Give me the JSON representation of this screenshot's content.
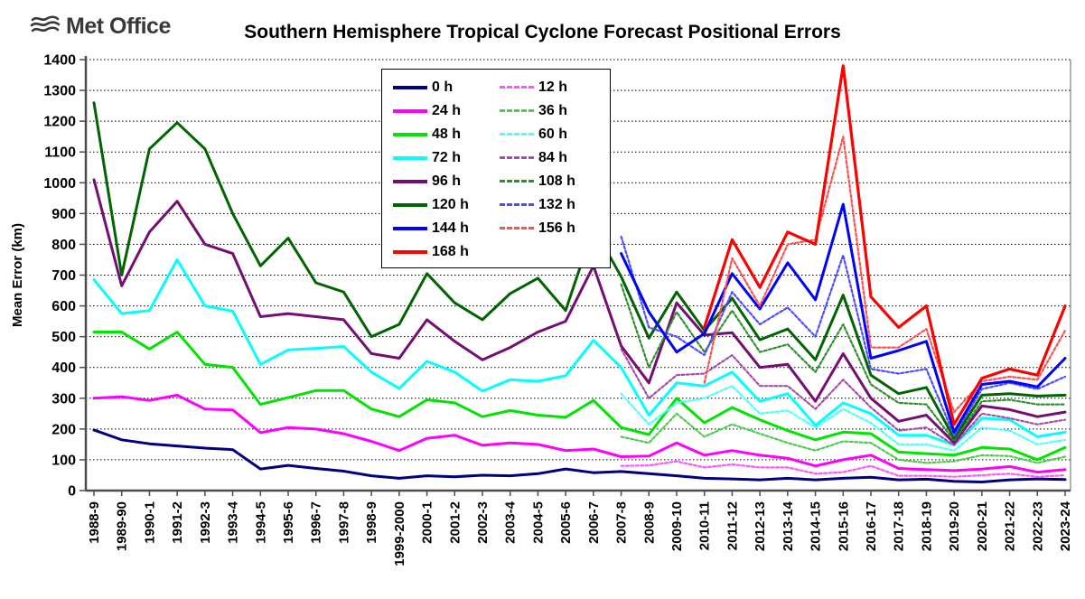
{
  "logo": {
    "text": "Met Office"
  },
  "chart_data": {
    "type": "line",
    "title": "Southern Hemisphere Tropical Cyclone Forecast Positional Errors",
    "xlabel": "",
    "ylabel": "Mean Error (km)",
    "ylim": [
      0,
      1400
    ],
    "ytick_step": 100,
    "grid": true,
    "legend_position": "inside-top-left",
    "categories": [
      "1988-9",
      "1989-90",
      "1990-1",
      "1991-2",
      "1992-3",
      "1993-4",
      "1994-5",
      "1995-6",
      "1996-7",
      "1997-8",
      "1998-9",
      "1999-2000",
      "2000-1",
      "2001-2",
      "2002-3",
      "2003-4",
      "2004-5",
      "2005-6",
      "2006-7",
      "2007-8",
      "2008-9",
      "2009-10",
      "2010-11",
      "2011-12",
      "2012-13",
      "2013-14",
      "2014-15",
      "2015-16",
      "2016-17",
      "2017-18",
      "2018-19",
      "2019-20",
      "2020-21",
      "2021-22",
      "2022-23",
      "2023-24"
    ],
    "series": [
      {
        "name": "0 h",
        "color": "#000080",
        "dashed": false,
        "width": 3,
        "values": [
          197,
          165,
          152,
          145,
          138,
          133,
          70,
          82,
          72,
          63,
          48,
          40,
          48,
          45,
          50,
          48,
          55,
          70,
          58,
          62,
          55,
          48,
          40,
          38,
          35,
          40,
          35,
          40,
          43,
          35,
          37,
          30,
          28,
          35,
          38,
          36
        ]
      },
      {
        "name": "12 h",
        "color": "#ff54ff",
        "dashed": true,
        "width": 2.2,
        "values": [
          null,
          null,
          null,
          null,
          null,
          null,
          null,
          null,
          null,
          null,
          null,
          null,
          null,
          null,
          null,
          null,
          null,
          null,
          null,
          80,
          82,
          95,
          75,
          85,
          75,
          75,
          55,
          60,
          80,
          48,
          48,
          45,
          50,
          55,
          45,
          50
        ]
      },
      {
        "name": "24 h",
        "color": "#ff00ff",
        "dashed": false,
        "width": 3,
        "values": [
          300,
          305,
          293,
          310,
          265,
          262,
          188,
          205,
          200,
          185,
          160,
          130,
          170,
          180,
          147,
          155,
          150,
          130,
          135,
          110,
          112,
          155,
          115,
          130,
          115,
          105,
          80,
          100,
          115,
          72,
          68,
          65,
          70,
          78,
          60,
          68
        ]
      },
      {
        "name": "36 h",
        "color": "#4ecb4e",
        "dashed": true,
        "width": 2.2,
        "values": [
          null,
          null,
          null,
          null,
          null,
          null,
          null,
          null,
          null,
          null,
          null,
          null,
          null,
          null,
          null,
          null,
          null,
          null,
          null,
          175,
          155,
          250,
          175,
          215,
          185,
          155,
          130,
          160,
          155,
          100,
          90,
          95,
          115,
          112,
          90,
          110
        ]
      },
      {
        "name": "48 h",
        "color": "#00e400",
        "dashed": false,
        "width": 3,
        "values": [
          515,
          515,
          460,
          515,
          410,
          400,
          280,
          302,
          325,
          325,
          265,
          240,
          295,
          285,
          240,
          260,
          245,
          238,
          293,
          205,
          182,
          300,
          220,
          270,
          230,
          195,
          165,
          190,
          185,
          125,
          120,
          115,
          140,
          135,
          100,
          140
        ]
      },
      {
        "name": "60 h",
        "color": "#4dffff",
        "dashed": true,
        "width": 2.2,
        "values": [
          null,
          null,
          null,
          null,
          null,
          null,
          null,
          null,
          null,
          null,
          null,
          null,
          null,
          null,
          null,
          null,
          null,
          null,
          null,
          315,
          215,
          285,
          300,
          340,
          250,
          260,
          205,
          265,
          220,
          150,
          150,
          130,
          205,
          195,
          150,
          165
        ]
      },
      {
        "name": "72 h",
        "color": "#00ffff",
        "dashed": false,
        "width": 3,
        "values": [
          685,
          575,
          585,
          750,
          600,
          583,
          410,
          457,
          462,
          468,
          385,
          332,
          420,
          385,
          323,
          360,
          355,
          373,
          488,
          400,
          245,
          350,
          340,
          385,
          290,
          315,
          212,
          285,
          250,
          180,
          180,
          148,
          235,
          230,
          175,
          190
        ]
      },
      {
        "name": "84 h",
        "color": "#a94ca9",
        "dashed": true,
        "width": 2.2,
        "values": [
          null,
          null,
          null,
          null,
          null,
          null,
          null,
          null,
          null,
          null,
          null,
          null,
          null,
          null,
          null,
          null,
          null,
          null,
          null,
          460,
          300,
          375,
          380,
          440,
          340,
          340,
          265,
          360,
          270,
          195,
          205,
          148,
          250,
          235,
          215,
          230
        ]
      },
      {
        "name": "96 h",
        "color": "#730e73",
        "dashed": false,
        "width": 3,
        "values": [
          1010,
          665,
          840,
          940,
          800,
          770,
          565,
          575,
          565,
          555,
          445,
          430,
          555,
          485,
          425,
          465,
          515,
          550,
          730,
          470,
          350,
          610,
          505,
          513,
          400,
          410,
          290,
          445,
          300,
          225,
          245,
          155,
          275,
          263,
          240,
          255
        ]
      },
      {
        "name": "108 h",
        "color": "#2f8f2f",
        "dashed": true,
        "width": 2.2,
        "values": [
          null,
          null,
          null,
          null,
          null,
          null,
          null,
          null,
          null,
          null,
          null,
          null,
          null,
          null,
          null,
          null,
          null,
          null,
          null,
          670,
          400,
          580,
          450,
          585,
          450,
          475,
          385,
          540,
          345,
          285,
          280,
          162,
          290,
          295,
          280,
          280
        ]
      },
      {
        "name": "120 h",
        "color": "#006400",
        "dashed": false,
        "width": 3,
        "values": [
          1260,
          700,
          1110,
          1195,
          1110,
          900,
          730,
          820,
          675,
          645,
          500,
          540,
          705,
          610,
          555,
          640,
          690,
          585,
          855,
          695,
          495,
          645,
          520,
          625,
          490,
          525,
          425,
          635,
          375,
          315,
          335,
          170,
          310,
          315,
          307,
          310
        ]
      },
      {
        "name": "132 h",
        "color": "#4d4dff",
        "dashed": true,
        "width": 2.2,
        "values": [
          null,
          null,
          null,
          null,
          null,
          null,
          null,
          null,
          null,
          null,
          null,
          null,
          null,
          null,
          null,
          null,
          null,
          null,
          null,
          825,
          530,
          500,
          440,
          645,
          540,
          595,
          500,
          765,
          395,
          380,
          395,
          178,
          330,
          350,
          330,
          370
        ]
      },
      {
        "name": "144 h",
        "color": "#0000ff",
        "dashed": false,
        "width": 3,
        "values": [
          null,
          null,
          null,
          null,
          null,
          null,
          null,
          null,
          null,
          null,
          null,
          null,
          null,
          null,
          null,
          null,
          null,
          null,
          null,
          770,
          580,
          450,
          510,
          705,
          590,
          740,
          620,
          930,
          430,
          455,
          485,
          190,
          345,
          355,
          337,
          430
        ]
      },
      {
        "name": "156 h",
        "color": "#ff5050",
        "dashed": true,
        "width": 2.2,
        "values": [
          null,
          null,
          null,
          null,
          null,
          null,
          null,
          null,
          null,
          null,
          null,
          null,
          null,
          null,
          null,
          null,
          null,
          null,
          null,
          null,
          null,
          null,
          350,
          755,
          600,
          800,
          815,
          1150,
          465,
          465,
          525,
          255,
          355,
          370,
          360,
          520
        ]
      },
      {
        "name": "168 h",
        "color": "#ff0000",
        "dashed": false,
        "width": 3.2,
        "values": [
          null,
          null,
          null,
          null,
          null,
          null,
          null,
          null,
          null,
          null,
          null,
          null,
          null,
          null,
          null,
          null,
          null,
          null,
          null,
          null,
          null,
          null,
          530,
          815,
          660,
          840,
          800,
          1380,
          630,
          530,
          600,
          215,
          365,
          395,
          375,
          600
        ]
      }
    ]
  }
}
